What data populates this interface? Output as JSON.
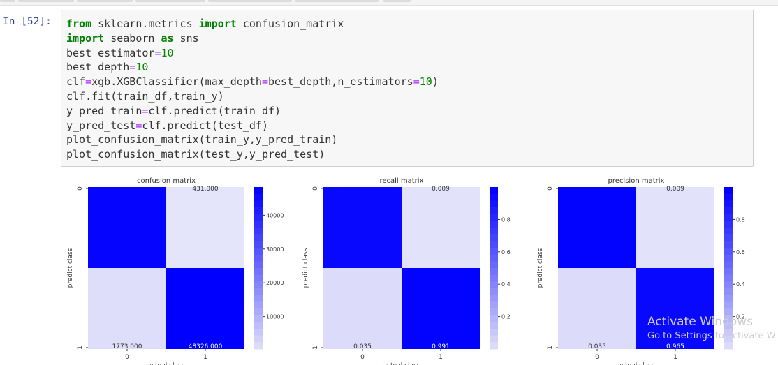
{
  "notebook": {
    "prompt": "In [52]:",
    "code_lines": [
      [
        {
          "t": "from",
          "c": "kw"
        },
        {
          "t": " sklearn.metrics ",
          "c": ""
        },
        {
          "t": "import",
          "c": "kw"
        },
        {
          "t": " confusion_matrix",
          "c": ""
        }
      ],
      [
        {
          "t": "import",
          "c": "kw"
        },
        {
          "t": " seaborn ",
          "c": ""
        },
        {
          "t": "as",
          "c": "kw"
        },
        {
          "t": " sns",
          "c": ""
        }
      ],
      [
        {
          "t": "best_estimator",
          "c": ""
        },
        {
          "t": "=",
          "c": "op"
        },
        {
          "t": "10",
          "c": "num"
        }
      ],
      [
        {
          "t": "best_depth",
          "c": ""
        },
        {
          "t": "=",
          "c": "op"
        },
        {
          "t": "10",
          "c": "num"
        }
      ],
      [
        {
          "t": "clf",
          "c": ""
        },
        {
          "t": "=",
          "c": "op"
        },
        {
          "t": "xgb.XGBClassifier(max_depth",
          "c": ""
        },
        {
          "t": "=",
          "c": "op"
        },
        {
          "t": "best_depth,n_estimators",
          "c": ""
        },
        {
          "t": "=",
          "c": "op"
        },
        {
          "t": "10",
          "c": "num"
        },
        {
          "t": ")",
          "c": ""
        }
      ],
      [
        {
          "t": "clf.fit(train_df,train_y)",
          "c": ""
        }
      ],
      [
        {
          "t": "y_pred_train",
          "c": ""
        },
        {
          "t": "=",
          "c": "op"
        },
        {
          "t": "clf.predict(train_df)",
          "c": ""
        }
      ],
      [
        {
          "t": "y_pred_test",
          "c": ""
        },
        {
          "t": "=",
          "c": "op"
        },
        {
          "t": "clf.predict(test_df)",
          "c": ""
        }
      ],
      [
        {
          "t": "plot_confusion_matrix(train_y,y_pred_train)",
          "c": ""
        }
      ],
      [
        {
          "t": "plot_confusion_matrix(test_y,y_pred_test)",
          "c": ""
        }
      ]
    ]
  },
  "watermark": {
    "line1": "Activate Windows",
    "line2": "Go to Settings to activate W"
  },
  "colors": {
    "dark": "#0000ff",
    "light": "#e4e4fa"
  },
  "chart_data": [
    {
      "type": "heatmap",
      "title": "confusion matrix",
      "xlabel": "actual class",
      "ylabel": "predict class",
      "x_ticks": [
        "0",
        "1"
      ],
      "y_ticks": [
        "0",
        "1"
      ],
      "cells": [
        [
          "",
          "431.000"
        ],
        [
          "1773.000",
          "48326.000"
        ]
      ],
      "values": [
        [
          47472,
          431
        ],
        [
          1773,
          48326
        ]
      ],
      "colorbar_ticks": [
        10000,
        20000,
        30000,
        40000
      ],
      "colorbar_labels": [
        "10000",
        "20000",
        "30000",
        "40000"
      ],
      "vmin": 431,
      "vmax": 48326
    },
    {
      "type": "heatmap",
      "title": "recall matrix",
      "xlabel": "actual class",
      "ylabel": "predict class",
      "x_ticks": [
        "0",
        "1"
      ],
      "y_ticks": [
        "0",
        "1"
      ],
      "cells": [
        [
          "",
          "0.009"
        ],
        [
          "0.035",
          "0.991"
        ]
      ],
      "values": [
        [
          0.965,
          0.009
        ],
        [
          0.035,
          0.991
        ]
      ],
      "colorbar_ticks": [
        0.2,
        0.4,
        0.6,
        0.8
      ],
      "colorbar_labels": [
        "0.2",
        "0.4",
        "0.6",
        "0.8"
      ],
      "vmin": 0.0,
      "vmax": 1.0
    },
    {
      "type": "heatmap",
      "title": "precision matrix",
      "xlabel": "actual class",
      "ylabel": "predict class",
      "x_ticks": [
        "0",
        "1"
      ],
      "y_ticks": [
        "0",
        "1"
      ],
      "cells": [
        [
          "",
          "0.009"
        ],
        [
          "0.035",
          "0.965"
        ]
      ],
      "values": [
        [
          0.991,
          0.009
        ],
        [
          0.035,
          0.965
        ]
      ],
      "colorbar_ticks": [
        0.2,
        0.4,
        0.6,
        0.8
      ],
      "colorbar_labels": [
        "0.2",
        "0.4",
        "0.6",
        "0.8"
      ],
      "vmin": 0.0,
      "vmax": 1.0
    }
  ]
}
